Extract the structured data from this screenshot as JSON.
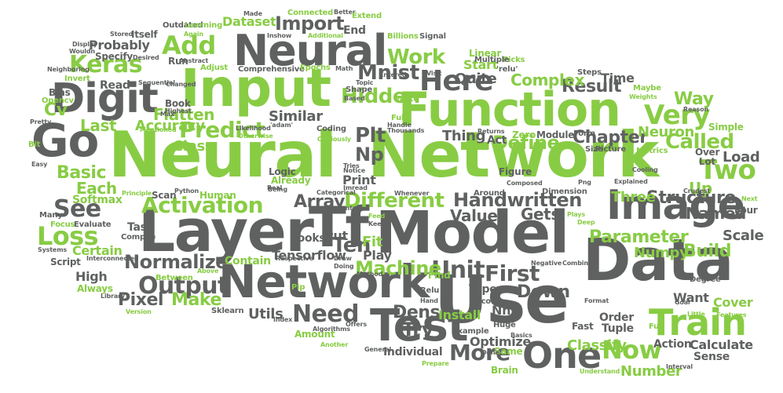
{
  "colors": {
    "green": "#88cc44",
    "dark": "#5f6161",
    "background": "#ffffff"
  },
  "words": {
    "neural_big": "Neural",
    "network_big": "Network",
    "layer": "Layer",
    "model": "Model",
    "data": "Data",
    "use": "Use",
    "network2": "Network",
    "function": "Function",
    "input": "Input",
    "neural2": "Neural",
    "digit": "Digit",
    "go": "Go",
    "tf": "Tf",
    "test": "Test",
    "image": "Image",
    "train": "Train",
    "one": "One",
    "activation": "Activation",
    "keras": "Keras",
    "add": "Add",
    "predict": "Predict",
    "here": "Here",
    "mnist": "Mnist",
    "very": "Very",
    "two": "Two",
    "called": "Called",
    "loss": "Loss",
    "see": "See",
    "output": "Output",
    "different": "Different",
    "handwritten": "Handwritten",
    "unit": "Unit",
    "first": "First",
    "now": "Now",
    "more": "More",
    "need": "Need",
    "ten": "Ten",
    "work": "Work",
    "import": "Import",
    "plt": "Plt",
    "np": "Np",
    "hidden": "Hidden",
    "define": "Define",
    "chapter": "Chapter",
    "result": "Result",
    "complex": "Complex",
    "way": "Way",
    "up": "Up",
    "structure": "Structure",
    "named": "Named",
    "parameter": "Parameter",
    "build": "Build",
    "machine": "Machine",
    "dense": "Dense",
    "try": "Try",
    "down": "Down",
    "values": "Values",
    "gets": "Gets",
    "three": "Three",
    "array": "Array",
    "pixel": "Pixel",
    "make": "Make",
    "normalize": "Normalize",
    "tensorflow": "Tensorflow",
    "basic": "Basic",
    "each": "Each",
    "class": "Class",
    "flatten": "Flatten",
    "accuracy": "Accuracy",
    "last": "Last",
    "cv": "Cv",
    "probably": "Probably",
    "dataset": "Dataset",
    "quite": "Quite",
    "start": "Start",
    "neuron": "Neuron",
    "load": "Load",
    "scale": "Scale",
    "numpy": "Numpy",
    "classify": "Classify",
    "number": "Number",
    "calculate": "Calculate",
    "action": "Action",
    "want": "Want",
    "cover": "Cover",
    "install": "Install",
    "optimize": "Optimize",
    "individual": "Individual",
    "fit": "Fit",
    "play": "Play",
    "print": "Print",
    "thing": "Thing",
    "similar": "Similar",
    "certain": "Certain",
    "high": "High",
    "contain": "Contain",
    "utils": "Utils",
    "amount": "Amount",
    "softmax": "Softmax",
    "task": "Task",
    "looks": "Looks",
    "put": "Put",
    "human": "Human",
    "scan": "Scan",
    "logic": "Logic",
    "figure": "Figure",
    "tuple": "Tuple",
    "order": "Order",
    "sense": "Sense",
    "simple": "Simple",
    "cooling": "Cooling",
    "connected": "Connected",
    "made": "Made",
    "better": "Better",
    "extend": "Extend",
    "end": "End",
    "billions": "Billions",
    "signal": "Signal",
    "linear": "Linear",
    "picks": "Picks",
    "steps": "Steps",
    "time": "Time",
    "maybe": "Maybe",
    "bias": "Bias",
    "opencv": "Opencv",
    "invert": "Invert",
    "read": "Read",
    "book": "Book",
    "itself": "Itself",
    "stored": "Stored",
    "specify": "Specify",
    "run": "Run",
    "adjust": "Adjust",
    "comprehensive": "Comprehensive",
    "epochs": "Epochs",
    "math": "Math",
    "shape": "Shape",
    "write": "Write",
    "fully": "Fully",
    "coding": "Coding",
    "thousands": "Thousands",
    "returns": "Returns",
    "act": "Act",
    "zero": "Zero",
    "module": "Module",
    "form": "Form",
    "size": "Size",
    "picture": "Picture",
    "metrics": "Metrics",
    "over": "Over",
    "lot": "Lot",
    "four": "Four",
    "next": "Next",
    "deep": "Deep",
    "dimension": "Dimension",
    "around": "Around",
    "categorical": "Categorical",
    "whenever": "Whenever",
    "python": "Python",
    "principle": "Principle",
    "sequential": "Sequential",
    "max": "Max",
    "compile": "Compile",
    "focus": "Focus",
    "evaluate": "Evaluate",
    "many": "Many",
    "systems": "Systems",
    "script": "Script",
    "interconnected": "Interconnected",
    "between": "Between",
    "above": "Above",
    "always": "Always",
    "library": "Library",
    "sklearn": "Sklearn",
    "pip": "Pip",
    "method": "Method",
    "relu": "Relu",
    "hand": "Hand",
    "second": "Second",
    "type": "Type",
    "find": "Find",
    "fast": "Fast",
    "huge": "Huge",
    "example": "Example",
    "basics": "Basics",
    "brain": "Brain",
    "same": "Same",
    "done": "Done",
    "general": "General",
    "another": "Another",
    "algorithms": "Algorithms",
    "offers": "Offers",
    "prepare": "Prepare",
    "understand": "Understand",
    "little": "Little",
    "interval": "Interval",
    "fun": "Fun",
    "features": "Features",
    "format": "Format",
    "degree": "Degree",
    "multiple": "Multiple",
    "relu_quoted": "'relu'",
    "png": "Png",
    "outdated": "Outdated",
    "learning": "Learning",
    "again": "Again",
    "abstract": "Abstract",
    "desired": "Desired",
    "display": "Display",
    "wouldn": "Wouldn",
    "already": "Already",
    "being": "Being",
    "real": "Real",
    "respective": "Respective",
    "draw": "Draw",
    "doing": "Doing",
    "keep": "Keep",
    "feed": "Feed",
    "entered": "Entered",
    "topic": "Topic",
    "based": "Based",
    "handle": "Handle",
    "inshow": "Inshow",
    "additional": "Additional",
    "reason": "Reason",
    "weights": "Weights",
    "bit": "Bit",
    "easy": "Easy",
    "pretty": "Pretty",
    "mentioned": "Mentioned",
    "highest": "Highest",
    "changed": "Changed",
    "likelihood": "Likelihood",
    "otherwise": "Otherwise",
    "adam": "'adam'",
    "obviously": "Obviously",
    "tries": "Tries",
    "notice": "Notice",
    "imread": "Imread",
    "composed": "Composed",
    "plays": "Plays",
    "explained": "Explained",
    "visit": "Visit",
    "negative": "Negative",
    "combine": "Combine",
    "version": "Version",
    "index": "Index",
    "percentage": "Percentage",
    "crudest": "Crudest",
    "goal": "Goal",
    "neighboring": "Neighboring",
    "nn": "Nn"
  }
}
